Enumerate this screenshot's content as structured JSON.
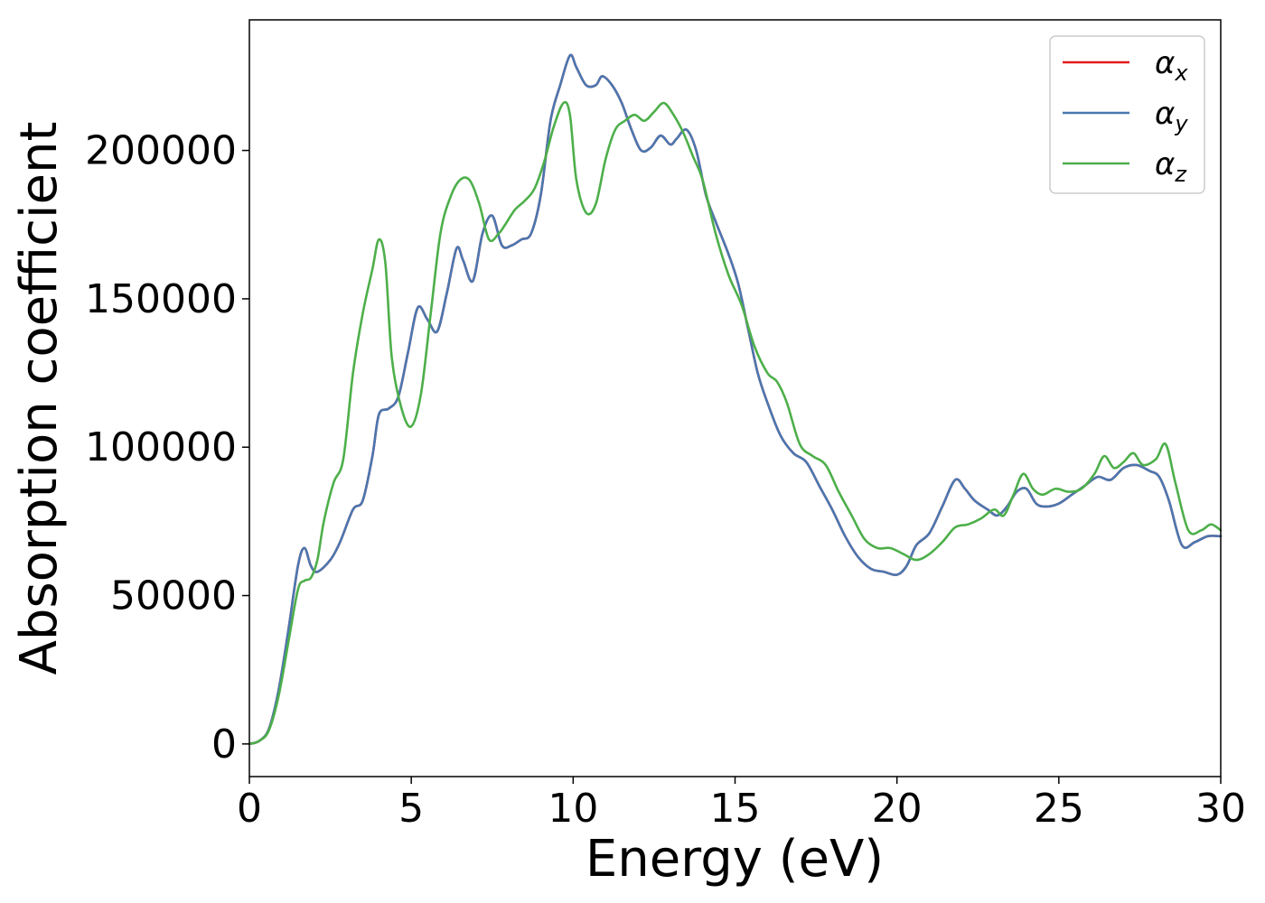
{
  "chart_data": {
    "type": "line",
    "xlabel": "Energy (eV)",
    "ylabel": "Absorption coefficient",
    "xlim": [
      0,
      30
    ],
    "ylim": [
      -11000,
      244000
    ],
    "xticks": [
      0,
      5,
      10,
      15,
      20,
      25,
      30
    ],
    "yticks": [
      0,
      50000,
      100000,
      150000,
      200000
    ],
    "grid": false,
    "legend_position": "top-right",
    "series": [
      {
        "name": "α",
        "subscript": "x",
        "color": "#e41a1c",
        "x": [
          0,
          0.3,
          0.6,
          0.9,
          1.2,
          1.5,
          1.7,
          1.9,
          2.1,
          2.5,
          2.8,
          3.2,
          3.5,
          3.8,
          4.0,
          4.3,
          4.6,
          4.9,
          5.2,
          5.5,
          5.8,
          6.1,
          6.4,
          6.6,
          6.9,
          7.2,
          7.5,
          7.8,
          8.1,
          8.4,
          8.7,
          9.0,
          9.3,
          9.6,
          9.9,
          10.1,
          10.4,
          10.7,
          10.9,
          11.2,
          11.5,
          11.8,
          12.1,
          12.4,
          12.7,
          13.0,
          13.2,
          13.5,
          13.8,
          14.1,
          14.4,
          14.8,
          15.1,
          15.4,
          15.7,
          16.0,
          16.4,
          16.8,
          17.2,
          17.6,
          18.0,
          18.4,
          18.8,
          19.2,
          19.6,
          20.0,
          20.3,
          20.6,
          21.0,
          21.4,
          21.8,
          22.1,
          22.4,
          22.8,
          23.1,
          23.4,
          23.7,
          24.0,
          24.3,
          24.6,
          25.0,
          25.4,
          25.8,
          26.2,
          26.6,
          27.0,
          27.4,
          27.8,
          28.1,
          28.4,
          28.8,
          29.2,
          29.6,
          30.0
        ],
        "values": [
          0,
          1000,
          5000,
          18000,
          38000,
          60000,
          66000,
          60000,
          58000,
          62000,
          68000,
          79000,
          82000,
          97000,
          111000,
          113000,
          117000,
          132000,
          147000,
          143000,
          139000,
          152000,
          167000,
          163000,
          156000,
          172000,
          178000,
          168000,
          168000,
          170000,
          172000,
          185000,
          210000,
          222000,
          232000,
          228000,
          222000,
          222000,
          225000,
          222000,
          216000,
          207000,
          200000,
          201000,
          205000,
          202000,
          204000,
          207000,
          200000,
          185000,
          176000,
          165000,
          155000,
          140000,
          125000,
          115000,
          104000,
          98000,
          95000,
          87000,
          79000,
          70000,
          63000,
          59000,
          58000,
          57000,
          60000,
          67000,
          71000,
          80000,
          89000,
          86000,
          82000,
          79000,
          77000,
          80000,
          85000,
          86000,
          81000,
          80000,
          81000,
          84000,
          87000,
          90000,
          89000,
          93000,
          94000,
          92000,
          90000,
          82000,
          67000,
          68000,
          70000,
          70000
        ]
      },
      {
        "name": "α",
        "subscript": "y",
        "color": "#4a77b0",
        "x": [
          0,
          0.3,
          0.6,
          0.9,
          1.2,
          1.5,
          1.7,
          1.9,
          2.1,
          2.5,
          2.8,
          3.2,
          3.5,
          3.8,
          4.0,
          4.3,
          4.6,
          4.9,
          5.2,
          5.5,
          5.8,
          6.1,
          6.4,
          6.6,
          6.9,
          7.2,
          7.5,
          7.8,
          8.1,
          8.4,
          8.7,
          9.0,
          9.3,
          9.6,
          9.9,
          10.1,
          10.4,
          10.7,
          10.9,
          11.2,
          11.5,
          11.8,
          12.1,
          12.4,
          12.7,
          13.0,
          13.2,
          13.5,
          13.8,
          14.1,
          14.4,
          14.8,
          15.1,
          15.4,
          15.7,
          16.0,
          16.4,
          16.8,
          17.2,
          17.6,
          18.0,
          18.4,
          18.8,
          19.2,
          19.6,
          20.0,
          20.3,
          20.6,
          21.0,
          21.4,
          21.8,
          22.1,
          22.4,
          22.8,
          23.1,
          23.4,
          23.7,
          24.0,
          24.3,
          24.6,
          25.0,
          25.4,
          25.8,
          26.2,
          26.6,
          27.0,
          27.4,
          27.8,
          28.1,
          28.4,
          28.8,
          29.2,
          29.6,
          30.0
        ],
        "values": [
          0,
          1000,
          5000,
          18000,
          38000,
          60000,
          66000,
          60000,
          58000,
          62000,
          68000,
          79000,
          82000,
          97000,
          111000,
          113000,
          117000,
          132000,
          147000,
          143000,
          139000,
          152000,
          167000,
          163000,
          156000,
          172000,
          178000,
          168000,
          168000,
          170000,
          172000,
          185000,
          210000,
          222000,
          232000,
          228000,
          222000,
          222000,
          225000,
          222000,
          216000,
          207000,
          200000,
          201000,
          205000,
          202000,
          204000,
          207000,
          200000,
          185000,
          176000,
          165000,
          155000,
          140000,
          125000,
          115000,
          104000,
          98000,
          95000,
          87000,
          79000,
          70000,
          63000,
          59000,
          58000,
          57000,
          60000,
          67000,
          71000,
          80000,
          89000,
          86000,
          82000,
          79000,
          77000,
          80000,
          85000,
          86000,
          81000,
          80000,
          81000,
          84000,
          87000,
          90000,
          89000,
          93000,
          94000,
          92000,
          90000,
          82000,
          67000,
          68000,
          70000,
          70000
        ]
      },
      {
        "name": "α",
        "subscript": "z",
        "color": "#4daf4a",
        "x": [
          0,
          0.3,
          0.6,
          0.9,
          1.2,
          1.5,
          1.7,
          1.9,
          2.1,
          2.3,
          2.6,
          2.9,
          3.2,
          3.5,
          3.8,
          4.0,
          4.2,
          4.4,
          4.7,
          5.0,
          5.3,
          5.6,
          5.9,
          6.2,
          6.5,
          6.8,
          7.1,
          7.4,
          7.7,
          7.9,
          8.2,
          8.5,
          8.8,
          9.1,
          9.4,
          9.7,
          9.9,
          10.1,
          10.4,
          10.7,
          11.0,
          11.3,
          11.6,
          11.9,
          12.2,
          12.5,
          12.8,
          13.1,
          13.4,
          13.7,
          14.0,
          14.4,
          14.8,
          15.2,
          15.6,
          16.0,
          16.3,
          16.6,
          17.0,
          17.4,
          17.8,
          18.2,
          18.6,
          19.0,
          19.4,
          19.8,
          20.2,
          20.6,
          21.0,
          21.4,
          21.8,
          22.2,
          22.6,
          23.0,
          23.3,
          23.6,
          23.9,
          24.2,
          24.5,
          24.9,
          25.3,
          25.7,
          26.1,
          26.4,
          26.7,
          27.0,
          27.3,
          27.6,
          28.0,
          28.3,
          28.6,
          29.0,
          29.4,
          29.7,
          30.0
        ],
        "values": [
          0,
          1000,
          4500,
          16000,
          34000,
          52000,
          55000,
          56000,
          62000,
          75000,
          88000,
          96000,
          125000,
          145000,
          160000,
          170000,
          162000,
          130000,
          113000,
          107000,
          118000,
          145000,
          172000,
          184000,
          190000,
          190000,
          182000,
          170000,
          172000,
          175000,
          180000,
          183000,
          187000,
          196000,
          208000,
          216000,
          212000,
          190000,
          179000,
          182000,
          197000,
          207000,
          210000,
          212000,
          210000,
          213000,
          216000,
          212000,
          206000,
          198000,
          190000,
          172000,
          158000,
          148000,
          134000,
          125000,
          122000,
          115000,
          101000,
          97000,
          94000,
          85000,
          77000,
          69000,
          66000,
          66000,
          64000,
          62000,
          64000,
          68000,
          73000,
          74000,
          76000,
          79000,
          77000,
          84000,
          91000,
          86000,
          84000,
          86000,
          85000,
          86000,
          91000,
          97000,
          93000,
          95000,
          98000,
          94000,
          96000,
          101000,
          88000,
          72000,
          72000,
          74000,
          72000
        ]
      }
    ]
  }
}
